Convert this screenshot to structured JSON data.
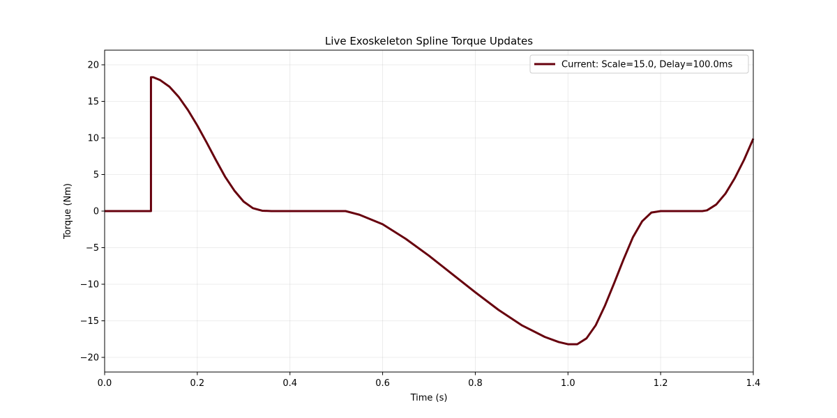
{
  "chart_data": {
    "type": "line",
    "title": "Live Exoskeleton Spline Torque Updates",
    "xlabel": "Time (s)",
    "ylabel": "Torque (Nm)",
    "xlim": [
      0.0,
      1.4
    ],
    "ylim": [
      -22,
      22
    ],
    "xticks": [
      0.0,
      0.2,
      0.4,
      0.6,
      0.8,
      1.0,
      1.2,
      1.4
    ],
    "xtick_labels": [
      "0.0",
      "0.2",
      "0.4",
      "0.6",
      "0.8",
      "1.0",
      "1.2",
      "1.4"
    ],
    "yticks": [
      -20,
      -15,
      -10,
      -5,
      0,
      5,
      10,
      15,
      20
    ],
    "ytick_labels": [
      "−20",
      "−15",
      "−10",
      "−5",
      "0",
      "5",
      "10",
      "15",
      "20"
    ],
    "grid": true,
    "legend_position": "upper right",
    "series": [
      {
        "name": "Current: Scale=15.0, Delay=100.0ms",
        "color": "#67000d",
        "x": [
          0.0,
          0.1,
          0.1,
          0.1,
          0.105,
          0.12,
          0.14,
          0.16,
          0.18,
          0.2,
          0.22,
          0.24,
          0.26,
          0.28,
          0.3,
          0.32,
          0.34,
          0.36,
          0.375,
          0.4,
          0.45,
          0.5,
          0.52,
          0.55,
          0.6,
          0.65,
          0.7,
          0.75,
          0.8,
          0.85,
          0.9,
          0.95,
          0.98,
          1.0,
          1.02,
          1.04,
          1.06,
          1.08,
          1.1,
          1.12,
          1.14,
          1.16,
          1.18,
          1.2,
          1.22,
          1.25,
          1.29,
          1.3,
          1.32,
          1.34,
          1.36,
          1.38,
          1.4
        ],
        "y": [
          0,
          0,
          0,
          18.3,
          18.3,
          17.9,
          17.0,
          15.6,
          13.8,
          11.7,
          9.4,
          7.0,
          4.7,
          2.8,
          1.3,
          0.4,
          0.05,
          0,
          0,
          0,
          0,
          0,
          0,
          -0.5,
          -1.8,
          -3.8,
          -6.1,
          -8.6,
          -11.1,
          -13.5,
          -15.6,
          -17.2,
          -17.9,
          -18.2,
          -18.2,
          -17.4,
          -15.6,
          -12.9,
          -9.8,
          -6.6,
          -3.6,
          -1.4,
          -0.2,
          0,
          0,
          0,
          0,
          0.1,
          0.9,
          2.4,
          4.5,
          7.0,
          9.9
        ]
      }
    ]
  }
}
